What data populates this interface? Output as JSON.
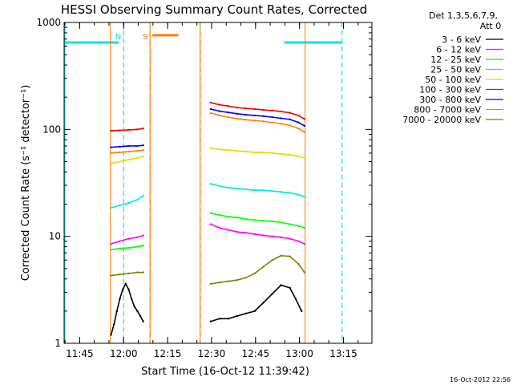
{
  "chart_data": {
    "type": "line",
    "title": "HESSI Observing Summary Count Rates, Corrected",
    "xlabel": "Start Time (16-Oct-12 11:39:42)",
    "ylabel": "Corrected Count Rate (s⁻¹ detector⁻¹)",
    "yscale": "log",
    "ylim": [
      1,
      1000
    ],
    "xlim_minutes_after_start": [
      0,
      105
    ],
    "x_ticks": [
      {
        "label": "11:45",
        "minutes": 5.3
      },
      {
        "label": "12:00",
        "minutes": 20.3
      },
      {
        "label": "12:15",
        "minutes": 35.3
      },
      {
        "label": "12:30",
        "minutes": 50.3
      },
      {
        "label": "12:45",
        "minutes": 65.3
      },
      {
        "label": "13:00",
        "minutes": 80.3
      },
      {
        "label": "13:15",
        "minutes": 95.3
      }
    ],
    "y_ticks": [
      {
        "label": "1",
        "value": 1
      },
      {
        "label": "10",
        "value": 10
      },
      {
        "label": "100",
        "value": 100
      },
      {
        "label": "1000",
        "value": 1000
      }
    ],
    "legend": {
      "header": [
        "Det 1,3,5,6,7,9,",
        "Att 0"
      ],
      "placement": "right"
    },
    "series": [
      {
        "name": "3 - 6 keV",
        "color": "#000000",
        "segments": [
          {
            "x": [
              16,
              17,
              18,
              19,
              20,
              21,
              22,
              23,
              24,
              25,
              26,
              27
            ],
            "y": [
              1.2,
              1.5,
              2.0,
              2.6,
              3.2,
              3.6,
              3.2,
              2.6,
              2.2,
              2.0,
              1.8,
              1.6
            ]
          },
          {
            "x": [
              50,
              53,
              56,
              59,
              62,
              65,
              68,
              71,
              74,
              77,
              79,
              81
            ],
            "y": [
              1.6,
              1.7,
              1.7,
              1.8,
              1.9,
              2.0,
              2.4,
              2.9,
              3.5,
              3.3,
              2.6,
              2.0
            ]
          }
        ]
      },
      {
        "name": "6 - 12 keV",
        "color": "#ff00ff",
        "segments": [
          {
            "x": [
              16,
              19,
              22,
              25,
              27
            ],
            "y": [
              8.5,
              9.0,
              9.5,
              9.8,
              10.2
            ]
          },
          {
            "x": [
              50,
              53,
              56,
              59,
              62,
              65,
              68,
              71,
              74,
              77,
              80,
              82
            ],
            "y": [
              13.0,
              12.0,
              11.5,
              11.0,
              10.8,
              10.5,
              10.2,
              10.0,
              9.8,
              9.5,
              9.0,
              8.5
            ]
          }
        ]
      },
      {
        "name": "12 - 25 keV",
        "color": "#00ff00",
        "segments": [
          {
            "x": [
              16,
              19,
              22,
              25,
              27
            ],
            "y": [
              7.5,
              7.7,
              7.8,
              8.0,
              8.2
            ]
          },
          {
            "x": [
              50,
              53,
              56,
              59,
              62,
              65,
              68,
              71,
              74,
              77,
              80,
              82
            ],
            "y": [
              16.5,
              15.8,
              15.3,
              15.0,
              14.5,
              14.2,
              14.0,
              13.8,
              13.5,
              13.0,
              12.5,
              12.0
            ]
          }
        ]
      },
      {
        "name": "25 - 50 keV",
        "color": "#00e6e6",
        "segments": [
          {
            "x": [
              16,
              19,
              22,
              25,
              27
            ],
            "y": [
              18.5,
              19.5,
              20.5,
              22.0,
              24.0
            ]
          },
          {
            "x": [
              50,
              53,
              56,
              59,
              62,
              65,
              68,
              71,
              74,
              77,
              80,
              82
            ],
            "y": [
              31.0,
              29.5,
              28.5,
              28.0,
              27.5,
              27.0,
              27.0,
              26.5,
              26.0,
              25.5,
              24.5,
              23.5
            ]
          }
        ]
      },
      {
        "name": "50 - 100 keV",
        "color": "#dddd00",
        "segments": [
          {
            "x": [
              16,
              19,
              22,
              25,
              27
            ],
            "y": [
              48,
              50,
              52,
              54,
              56
            ]
          },
          {
            "x": [
              50,
              53,
              56,
              59,
              62,
              65,
              68,
              71,
              74,
              77,
              80,
              82
            ],
            "y": [
              67,
              65,
              64,
              63,
              62,
              61,
              61,
              60,
              59,
              58,
              56,
              54
            ]
          }
        ]
      },
      {
        "name": "100 - 300 keV",
        "color": "#ee0000",
        "segments": [
          {
            "x": [
              16,
              19,
              22,
              25,
              27
            ],
            "y": [
              97,
              98,
              99,
              100,
              102
            ]
          },
          {
            "x": [
              50,
              53,
              56,
              59,
              62,
              65,
              68,
              71,
              74,
              77,
              80,
              82
            ],
            "y": [
              178,
              170,
              165,
              160,
              157,
              155,
              152,
              150,
              147,
              143,
              135,
              125
            ]
          }
        ]
      },
      {
        "name": "300 - 800 keV",
        "color": "#0000ee",
        "segments": [
          {
            "x": [
              16,
              19,
              22,
              25,
              27
            ],
            "y": [
              68,
              69,
              70,
              70,
              71
            ]
          },
          {
            "x": [
              50,
              53,
              56,
              59,
              62,
              65,
              68,
              71,
              74,
              77,
              80,
              82
            ],
            "y": [
              155,
              148,
              144,
              140,
              137,
              135,
              133,
              130,
              127,
              124,
              116,
              108
            ]
          }
        ]
      },
      {
        "name": "800 - 7000 keV",
        "color": "#ff7f00",
        "segments": [
          {
            "x": [
              16,
              19,
              22,
              25,
              27
            ],
            "y": [
              60,
              61,
              62,
              63,
              64
            ]
          },
          {
            "x": [
              50,
              53,
              56,
              59,
              62,
              65,
              68,
              71,
              74,
              77,
              80,
              82
            ],
            "y": [
              142,
              135,
              130,
              126,
              123,
              121,
              119,
              116,
              113,
              109,
              102,
              94
            ]
          }
        ]
      },
      {
        "name": "7000 - 20000 keV",
        "color": "#808000",
        "segments": [
          {
            "x": [
              16,
              19,
              22,
              25,
              27
            ],
            "y": [
              4.3,
              4.4,
              4.5,
              4.6,
              4.6
            ]
          },
          {
            "x": [
              50,
              53,
              56,
              59,
              62,
              65,
              68,
              71,
              74,
              77,
              80,
              82
            ],
            "y": [
              3.6,
              3.7,
              3.8,
              3.9,
              4.1,
              4.5,
              5.2,
              6.0,
              6.6,
              6.5,
              5.5,
              4.6
            ]
          }
        ]
      }
    ],
    "annotations": [
      {
        "type": "night",
        "label": "N",
        "color": "#00e6e6",
        "start_minutes": 20.3,
        "end_minutes": 94.8,
        "level": 650
      },
      {
        "type": "saa",
        "label": "S",
        "color": "#ff7f00",
        "start_minutes": 29.3,
        "end_minutes": 46.4,
        "level": 760
      }
    ],
    "data_gaps_minutes": [
      [
        15.8,
        29.3
      ],
      [
        46.4,
        82.2
      ]
    ],
    "timestamp": "16-Oct-2012 22:56"
  }
}
